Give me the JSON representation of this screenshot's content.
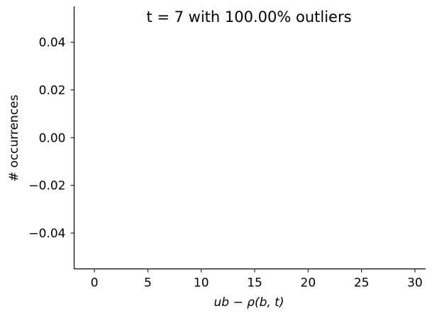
{
  "chart_data": {
    "type": "bar",
    "title": "t = 7 with 100.00% outliers",
    "xlabel": "ub − ρ(b, t)",
    "ylabel": "# occurrences",
    "xlim": [
      -1.9,
      31.0
    ],
    "ylim": [
      -0.055,
      0.055
    ],
    "x_ticks": [
      0,
      5,
      10,
      15,
      20,
      25,
      30
    ],
    "x_tick_labels": [
      "0",
      "5",
      "10",
      "15",
      "20",
      "25",
      "30"
    ],
    "y_ticks": [
      0.04,
      0.02,
      0.0,
      -0.02,
      -0.04
    ],
    "y_tick_labels": [
      "0.04",
      "0.02",
      "0.00",
      "−0.02",
      "−0.04"
    ],
    "series": [],
    "grid": false,
    "legend": "none",
    "colors": {
      "axis": "#000000",
      "background": "#ffffff"
    }
  }
}
